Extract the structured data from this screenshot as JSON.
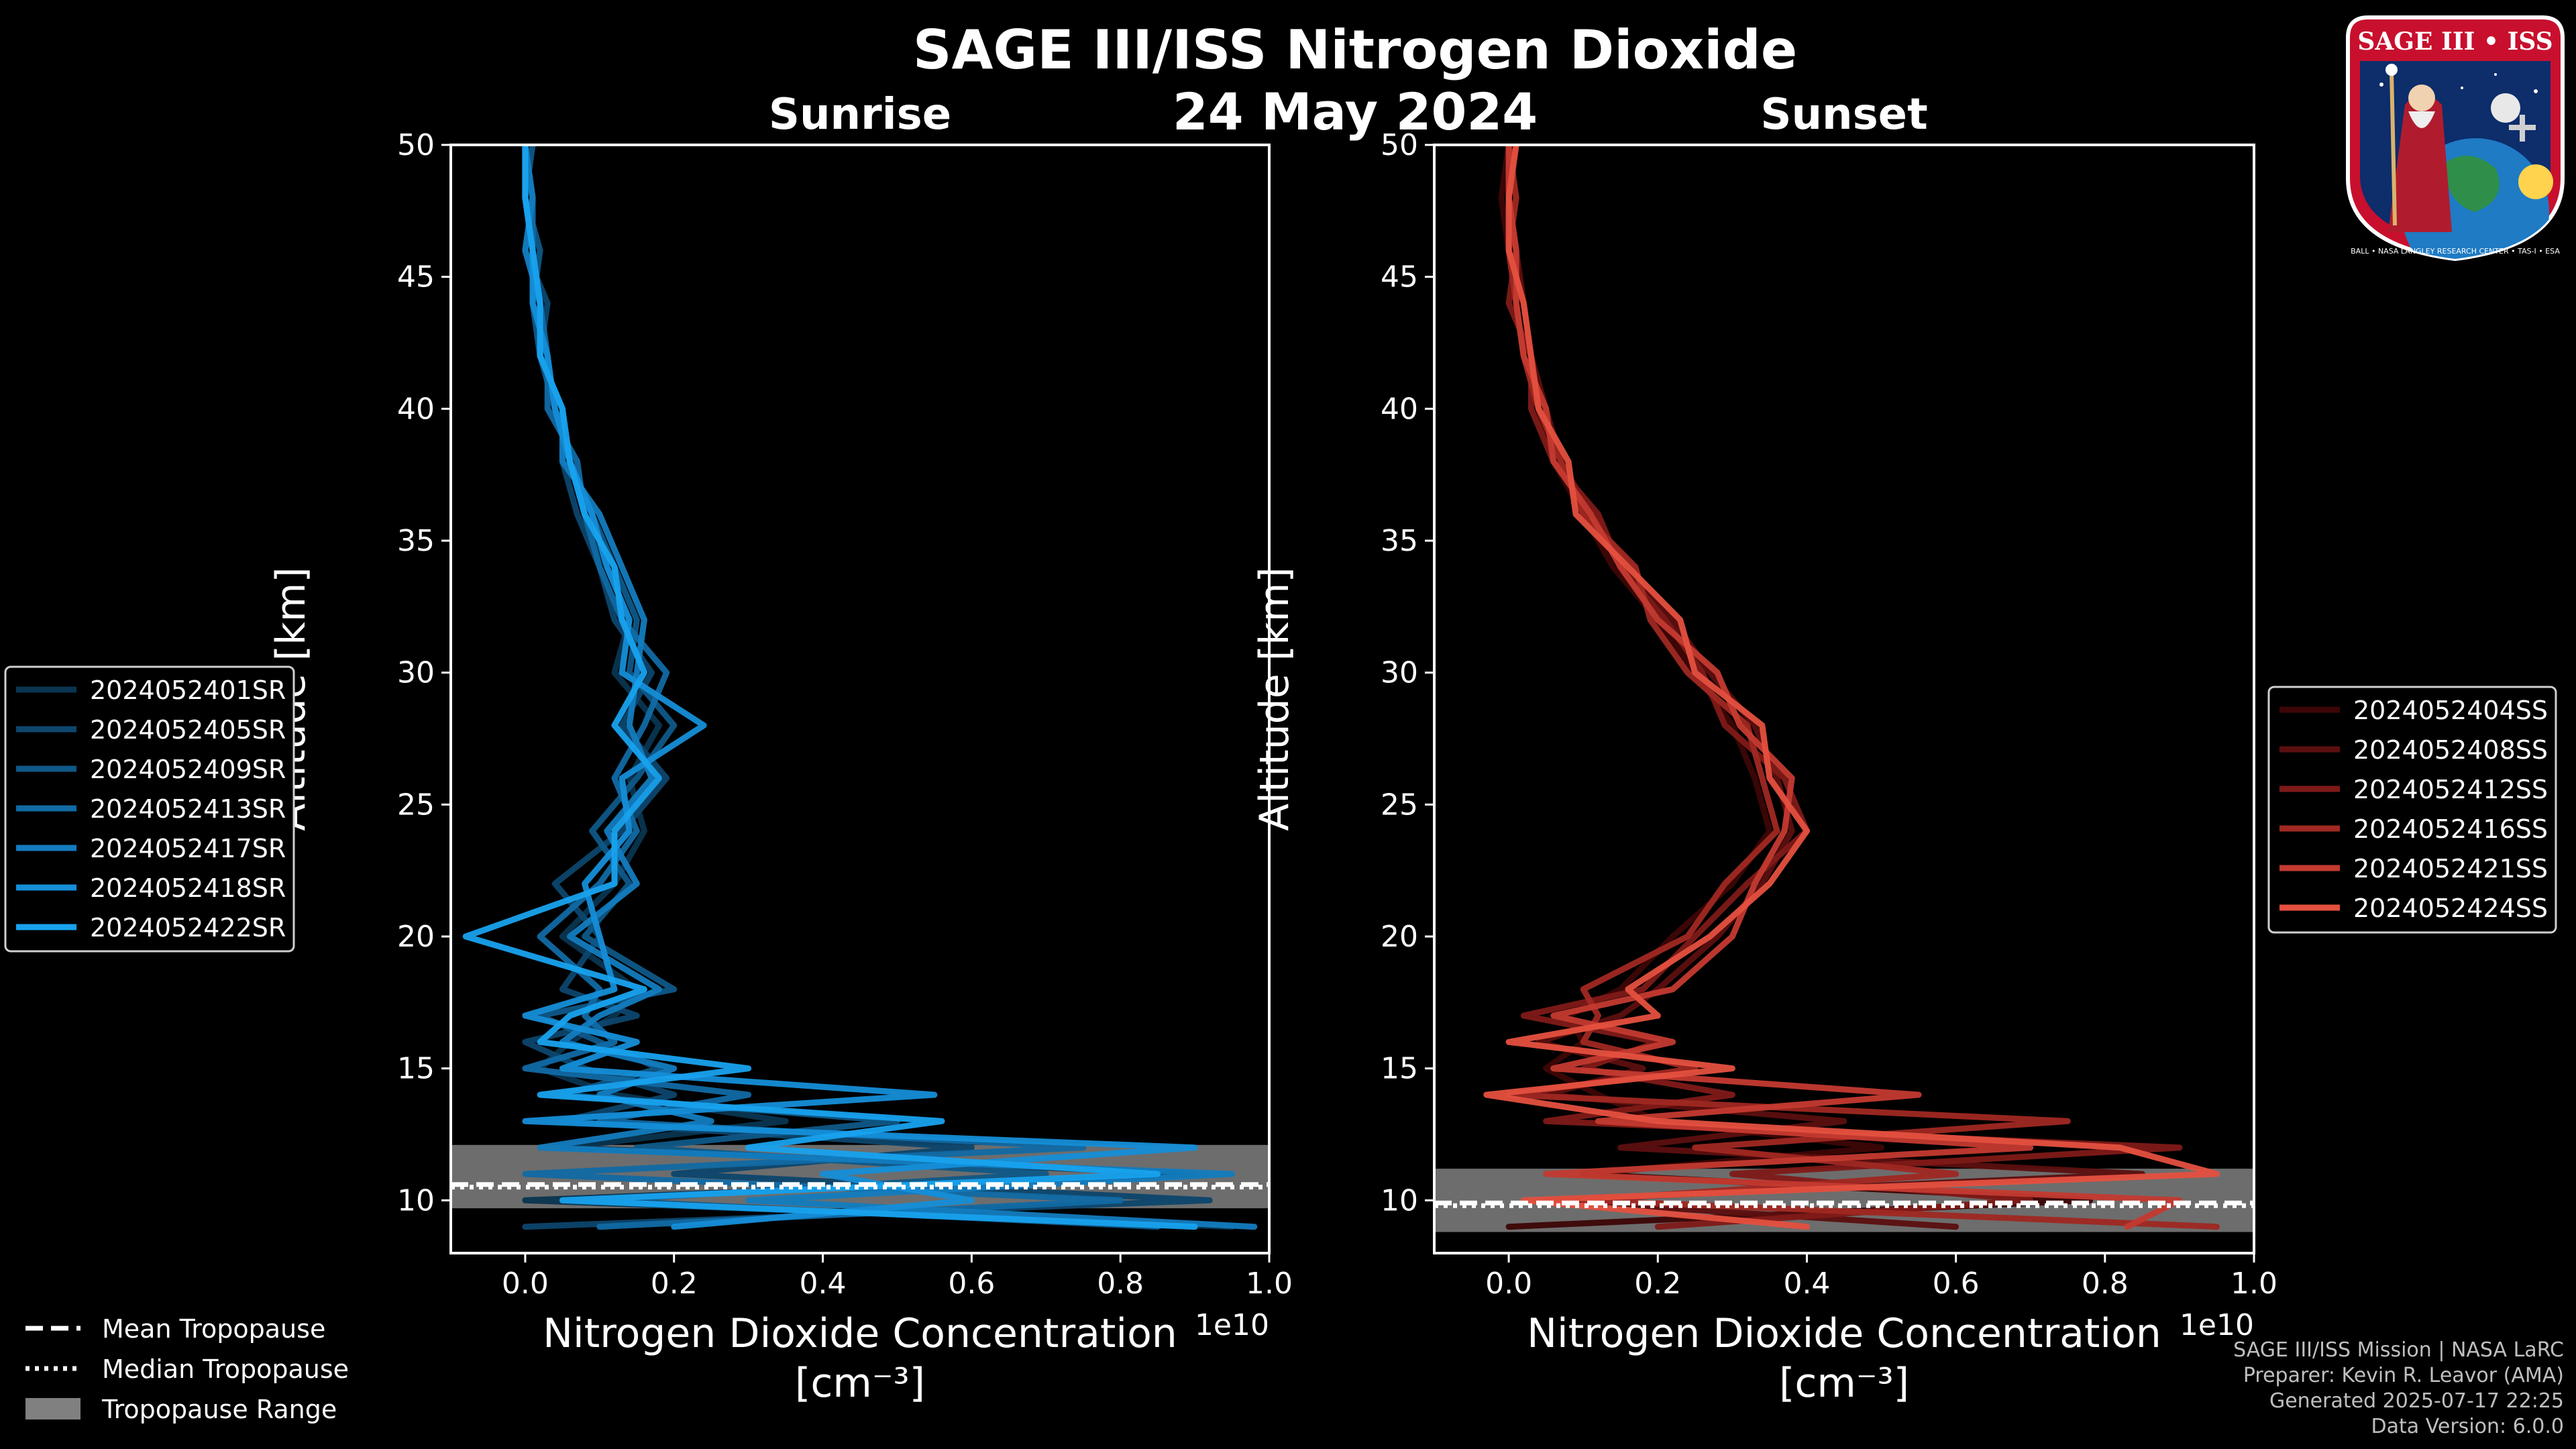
{
  "figure": {
    "title": "SAGE III/ISS Nitrogen Dioxide",
    "date": "24 May 2024",
    "logo_text": "SAGE III • ISS",
    "logo_ring_text": "BALL • NASA LANGLEY RESEARCH CENTER • TAS-I • ESA"
  },
  "footer": {
    "line1": "SAGE III/ISS Mission | NASA LaRC",
    "line2": "Preparer: Kevin R. Leavor (AMA)",
    "line3": "Generated 2025-07-17 22:25",
    "line4": "Data Version: 6.0.0"
  },
  "tropopause_legend": {
    "mean": "Mean Tropopause",
    "median": "Median Tropopause",
    "range": "Tropopause Range"
  },
  "chart_data": [
    {
      "type": "line",
      "title": "Sunrise",
      "xlabel": "Nitrogen Dioxide Concentration",
      "xlabel_unit": "[cm⁻³]",
      "x_multiplier": "1e10",
      "ylabel": "Altitude [km]",
      "xlim": [
        -0.1,
        1.0
      ],
      "ylim": [
        8,
        50
      ],
      "xticks": [
        0.0,
        0.2,
        0.4,
        0.6,
        0.8,
        1.0
      ],
      "xtick_labels": [
        "0.0",
        "0.2",
        "0.4",
        "0.6",
        "0.8",
        "1.0"
      ],
      "yticks": [
        10,
        15,
        20,
        25,
        30,
        35,
        40,
        45,
        50
      ],
      "ytick_labels": [
        "10",
        "15",
        "20",
        "25",
        "30",
        "35",
        "40",
        "45",
        "50"
      ],
      "legend_position": "left",
      "tropopause": {
        "mean": 10.6,
        "median": 10.5,
        "range": [
          9.7,
          12.1
        ]
      },
      "palette": [
        "#0a3550",
        "#0d466d",
        "#0f5888",
        "#116aa4",
        "#137cbf",
        "#158ed8",
        "#18a2ee"
      ],
      "series": [
        {
          "name": "2024052401SR",
          "altitude": [
            9,
            10,
            11,
            12,
            13,
            14,
            15,
            16,
            17,
            18,
            20,
            22,
            24,
            26,
            28,
            30,
            32,
            34,
            36,
            38,
            40,
            42,
            44,
            46,
            48,
            50
          ],
          "values": [
            0.95,
            0.0,
            0.9,
            0.05,
            0.35,
            0.12,
            0.02,
            0.06,
            0.12,
            0.15,
            0.05,
            0.12,
            0.16,
            0.14,
            0.18,
            0.12,
            0.14,
            0.11,
            0.08,
            0.06,
            0.04,
            0.03,
            0.02,
            0.01,
            0.0,
            0.0
          ]
        },
        {
          "name": "2024052405SR",
          "altitude": [
            9,
            10,
            11,
            12,
            13,
            14,
            15,
            16,
            17,
            18,
            20,
            22,
            24,
            26,
            28,
            30,
            32,
            34,
            36,
            38,
            40,
            42,
            44,
            46,
            48,
            50
          ],
          "values": [
            0.0,
            0.92,
            0.2,
            0.6,
            0.05,
            0.2,
            0.08,
            0.0,
            0.15,
            0.05,
            0.1,
            0.04,
            0.13,
            0.19,
            0.13,
            0.17,
            0.12,
            0.1,
            0.07,
            0.05,
            0.05,
            0.02,
            0.03,
            0.0,
            0.01,
            0.0
          ]
        },
        {
          "name": "2024052409SR",
          "altitude": [
            9,
            10,
            11,
            12,
            13,
            14,
            15,
            16,
            17,
            18,
            20,
            22,
            24,
            26,
            28,
            30,
            32,
            34,
            36,
            38,
            40,
            42,
            44,
            46,
            48,
            50
          ],
          "values": [
            0.85,
            0.1,
            0.7,
            0.15,
            0.5,
            0.05,
            0.18,
            0.1,
            0.02,
            0.2,
            0.08,
            0.14,
            0.09,
            0.15,
            0.2,
            0.14,
            0.15,
            0.12,
            0.09,
            0.06,
            0.04,
            0.02,
            0.01,
            0.02,
            0.0,
            0.01
          ]
        },
        {
          "name": "2024052413SR",
          "altitude": [
            9,
            10,
            11,
            12,
            13,
            14,
            15,
            16,
            17,
            18,
            20,
            22,
            24,
            26,
            28,
            30,
            32,
            34,
            36,
            38,
            40,
            42,
            44,
            46,
            48,
            50
          ],
          "values": [
            0.1,
            0.8,
            0.0,
            0.75,
            0.1,
            0.3,
            0.0,
            0.12,
            0.08,
            0.1,
            0.02,
            0.1,
            0.15,
            0.12,
            0.16,
            0.19,
            0.13,
            0.1,
            0.08,
            0.07,
            0.03,
            0.03,
            0.02,
            0.01,
            0.01,
            0.0
          ]
        },
        {
          "name": "2024052417SR",
          "altitude": [
            9,
            10,
            11,
            12,
            13,
            14,
            15,
            16,
            17,
            18,
            20,
            22,
            24,
            26,
            28,
            30,
            32,
            34,
            36,
            38,
            40,
            42,
            44,
            46,
            48,
            50
          ],
          "values": [
            0.98,
            0.3,
            0.95,
            0.02,
            0.25,
            0.1,
            0.2,
            0.05,
            0.1,
            0.18,
            0.06,
            0.15,
            0.11,
            0.17,
            0.14,
            0.15,
            0.16,
            0.13,
            0.1,
            0.05,
            0.05,
            0.02,
            0.02,
            0.0,
            0.01,
            0.0
          ]
        },
        {
          "name": "2024052418SR",
          "altitude": [
            9,
            10,
            11,
            12,
            13,
            14,
            15,
            16,
            17,
            18,
            20,
            22,
            24,
            26,
            28,
            30,
            32,
            34,
            36,
            38,
            40,
            42,
            44,
            46,
            48,
            50
          ],
          "values": [
            0.2,
            0.6,
            0.4,
            0.9,
            0.0,
            0.55,
            0.05,
            0.15,
            0.0,
            0.12,
            0.1,
            0.08,
            0.14,
            0.13,
            0.24,
            0.13,
            0.14,
            0.11,
            0.09,
            0.06,
            0.04,
            0.03,
            0.01,
            0.01,
            0.0,
            0.0
          ]
        },
        {
          "name": "2024052422SR",
          "altitude": [
            9,
            10,
            11,
            12,
            13,
            14,
            15,
            16,
            17,
            18,
            20,
            22,
            24,
            26,
            28,
            30,
            32,
            34,
            36,
            38,
            40,
            42,
            44,
            46,
            48,
            50
          ],
          "values": [
            0.9,
            0.05,
            0.85,
            0.3,
            0.56,
            0.02,
            0.3,
            0.02,
            0.06,
            0.16,
            -0.08,
            0.12,
            0.12,
            0.18,
            0.12,
            0.16,
            0.13,
            0.12,
            0.08,
            0.06,
            0.05,
            0.02,
            0.02,
            0.01,
            0.0,
            0.0
          ]
        }
      ]
    },
    {
      "type": "line",
      "title": "Sunset",
      "xlabel": "Nitrogen Dioxide Concentration",
      "xlabel_unit": "[cm⁻³]",
      "x_multiplier": "1e10",
      "ylabel": "Altitude [km]",
      "xlim": [
        -0.1,
        1.0
      ],
      "ylim": [
        8,
        50
      ],
      "xticks": [
        0.0,
        0.2,
        0.4,
        0.6,
        0.8,
        1.0
      ],
      "xtick_labels": [
        "0.0",
        "0.2",
        "0.4",
        "0.6",
        "0.8",
        "1.0"
      ],
      "yticks": [
        10,
        15,
        20,
        25,
        30,
        35,
        40,
        45,
        50
      ],
      "ytick_labels": [
        "10",
        "15",
        "20",
        "25",
        "30",
        "35",
        "40",
        "45",
        "50"
      ],
      "legend_position": "right",
      "tropopause": {
        "mean": 9.9,
        "median": 9.8,
        "range": [
          8.8,
          11.2
        ]
      },
      "palette": [
        "#3d0606",
        "#5c0f0f",
        "#7f1a18",
        "#a02822",
        "#c43a30",
        "#e5503f"
      ],
      "series": [
        {
          "name": "2024052404SS",
          "altitude": [
            9,
            10,
            11,
            12,
            13,
            14,
            15,
            16,
            17,
            18,
            20,
            22,
            24,
            26,
            28,
            30,
            32,
            34,
            36,
            38,
            40,
            42,
            44,
            46,
            48,
            50
          ],
          "values": [
            0.0,
            0.78,
            0.1,
            0.5,
            0.2,
            0.12,
            0.05,
            0.1,
            0.08,
            0.15,
            0.22,
            0.3,
            0.35,
            0.33,
            0.3,
            0.25,
            0.2,
            0.14,
            0.1,
            0.06,
            0.04,
            0.02,
            0.01,
            0.0,
            -0.01,
            0.0
          ]
        },
        {
          "name": "2024052408SS",
          "altitude": [
            9,
            10,
            11,
            12,
            13,
            14,
            15,
            16,
            17,
            18,
            20,
            22,
            24,
            26,
            28,
            30,
            32,
            34,
            36,
            38,
            40,
            42,
            44,
            46,
            48,
            50
          ],
          "values": [
            0.6,
            0.05,
            0.85,
            0.15,
            0.45,
            0.05,
            0.18,
            0.04,
            0.15,
            0.2,
            0.28,
            0.34,
            0.38,
            0.36,
            0.33,
            0.27,
            0.22,
            0.16,
            0.11,
            0.07,
            0.05,
            0.03,
            0.02,
            0.01,
            0.0,
            0.01
          ]
        },
        {
          "name": "2024052412SS",
          "altitude": [
            9,
            10,
            11,
            12,
            13,
            14,
            15,
            16,
            17,
            18,
            20,
            22,
            24,
            26,
            28,
            30,
            32,
            34,
            36,
            38,
            40,
            42,
            44,
            46,
            48,
            50
          ],
          "values": [
            0.2,
            0.7,
            0.3,
            0.9,
            0.05,
            0.3,
            0.1,
            0.2,
            0.02,
            0.18,
            0.25,
            0.32,
            0.4,
            0.37,
            0.29,
            0.26,
            0.21,
            0.15,
            0.12,
            0.06,
            0.03,
            0.03,
            0.0,
            0.01,
            0.0,
            0.0
          ]
        },
        {
          "name": "2024052416SS",
          "altitude": [
            9,
            10,
            11,
            12,
            13,
            14,
            15,
            16,
            17,
            18,
            20,
            22,
            24,
            26,
            28,
            30,
            32,
            34,
            36,
            38,
            40,
            42,
            44,
            46,
            48,
            50
          ],
          "values": [
            0.95,
            0.1,
            0.6,
            0.25,
            0.75,
            0.0,
            0.25,
            0.1,
            0.12,
            0.1,
            0.24,
            0.29,
            0.36,
            0.34,
            0.32,
            0.24,
            0.19,
            0.17,
            0.1,
            0.07,
            0.04,
            0.02,
            0.01,
            0.0,
            0.01,
            0.0
          ]
        },
        {
          "name": "2024052421SS",
          "altitude": [
            9,
            10,
            11,
            12,
            13,
            14,
            15,
            16,
            17,
            18,
            20,
            22,
            24,
            26,
            28,
            30,
            32,
            34,
            36,
            38,
            40,
            42,
            44,
            46,
            48,
            50
          ],
          "values": [
            0.83,
            0.9,
            0.05,
            0.7,
            0.12,
            0.55,
            0.06,
            0.22,
            0.06,
            0.22,
            0.3,
            0.33,
            0.37,
            0.38,
            0.31,
            0.28,
            0.2,
            0.15,
            0.11,
            0.06,
            0.05,
            0.02,
            0.01,
            0.01,
            0.0,
            0.0
          ]
        },
        {
          "name": "2024052424SS",
          "altitude": [
            9,
            10,
            11,
            12,
            13,
            14,
            15,
            16,
            17,
            18,
            20,
            22,
            24,
            26,
            28,
            30,
            32,
            34,
            36,
            38,
            40,
            42,
            44,
            46,
            48,
            50
          ],
          "values": [
            0.4,
            0.02,
            0.95,
            0.82,
            0.2,
            -0.03,
            0.3,
            0.0,
            0.2,
            0.16,
            0.27,
            0.35,
            0.4,
            0.35,
            0.34,
            0.25,
            0.23,
            0.16,
            0.09,
            0.08,
            0.04,
            0.03,
            0.02,
            0.0,
            0.0,
            0.01
          ]
        }
      ]
    }
  ]
}
